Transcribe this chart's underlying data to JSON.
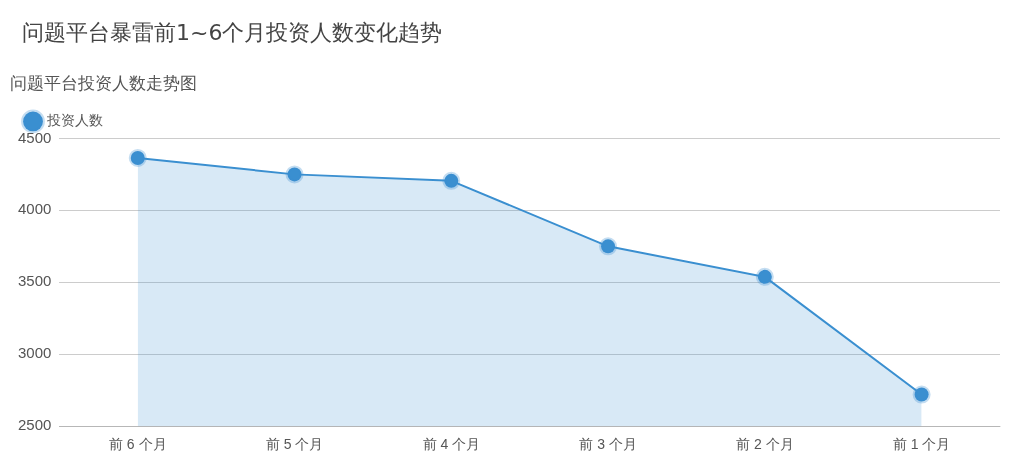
{
  "chart_data": {
    "type": "area",
    "title": "问题平台暴雷前1~6个月投资人数变化趋势",
    "subtitle": "问题平台投资人数走势图",
    "categories": [
      "前 6 个月",
      "前 5 个月",
      "前 4 个月",
      "前 3 个月",
      "前 2 个月",
      "前 1 个月"
    ],
    "series": [
      {
        "name": "投资人数",
        "color": "#3a8fd0",
        "values": [
          4364,
          4250,
          4205,
          3750,
          3538,
          2720
        ]
      }
    ],
    "ylim": [
      2500,
      4500
    ],
    "yticks": [
      2500,
      3000,
      3500,
      4000,
      4500
    ],
    "grid": "y",
    "legend": "top left",
    "marker": "circle"
  }
}
